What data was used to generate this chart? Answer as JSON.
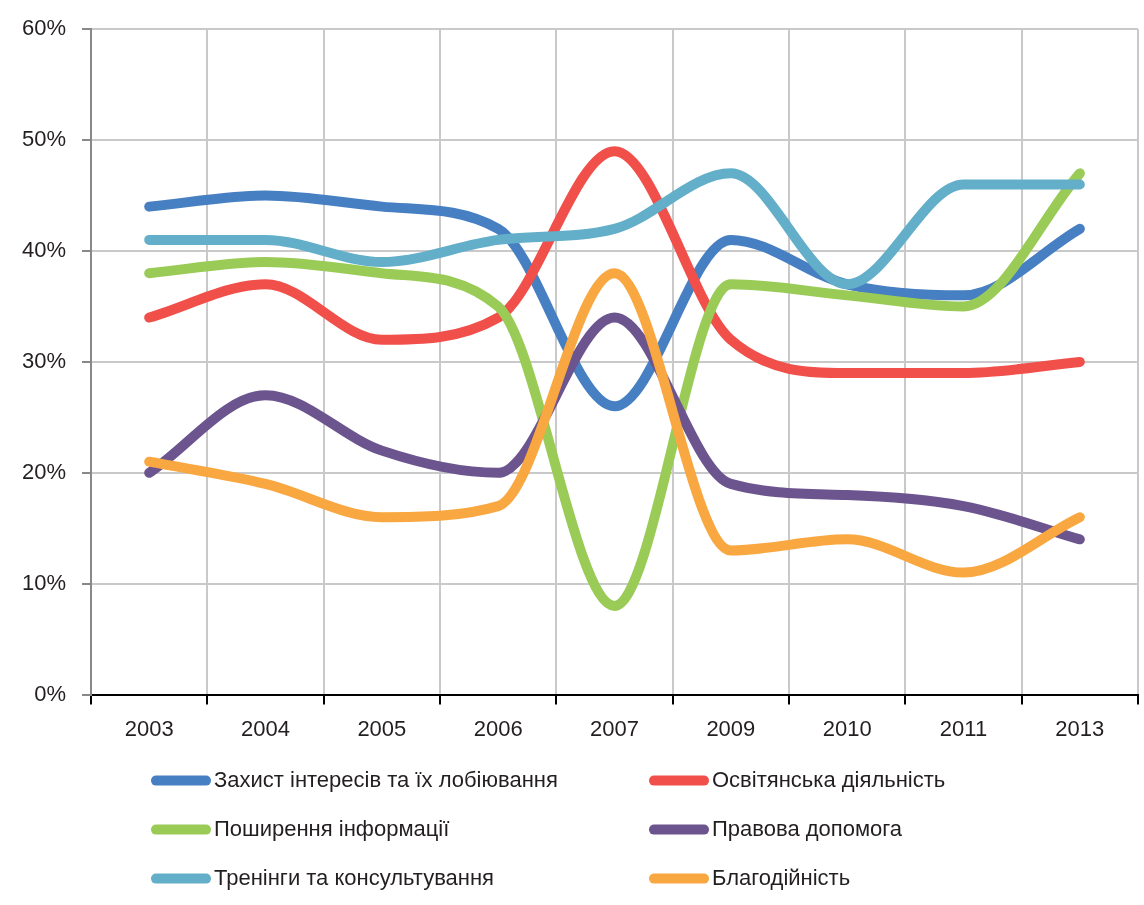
{
  "chart_data": {
    "type": "line",
    "categories": [
      "2003",
      "2004",
      "2005",
      "2006",
      "2007",
      "2009",
      "2010",
      "2011",
      "2013"
    ],
    "series": [
      {
        "name": "Захист інтересів та їх лобіювання",
        "color": "#467fc2",
        "values": [
          44,
          45,
          44,
          42,
          26,
          41,
          37,
          36,
          42
        ]
      },
      {
        "name": "Освітянська діяльність",
        "color": "#f04f4a",
        "values": [
          34,
          37,
          32,
          34,
          49,
          32,
          29,
          29,
          30
        ]
      },
      {
        "name": "Поширення інформації",
        "color": "#9acb57",
        "values": [
          38,
          39,
          38,
          35,
          8,
          37,
          36,
          35,
          47
        ]
      },
      {
        "name": "Правова допомога",
        "color": "#6c558e",
        "values": [
          20,
          27,
          22,
          20,
          34,
          19,
          18,
          17,
          14
        ]
      },
      {
        "name": "Тренінги та консультування",
        "color": "#63afc9",
        "values": [
          41,
          41,
          39,
          41,
          42,
          47,
          37,
          46,
          46
        ]
      },
      {
        "name": "Благодійність",
        "color": "#f9a741",
        "values": [
          21,
          19,
          16,
          17,
          38,
          13,
          14,
          11,
          16
        ]
      }
    ],
    "ylim": [
      0,
      60
    ],
    "yticks": [
      {
        "value": 0,
        "label": "0%"
      },
      {
        "value": 10,
        "label": "10%"
      },
      {
        "value": 20,
        "label": "20%"
      },
      {
        "value": 30,
        "label": "30%"
      },
      {
        "value": 40,
        "label": "40%"
      },
      {
        "value": 50,
        "label": "50%"
      },
      {
        "value": 60,
        "label": "60%"
      }
    ],
    "grid": true,
    "legend": "bottom",
    "marker": "none"
  }
}
